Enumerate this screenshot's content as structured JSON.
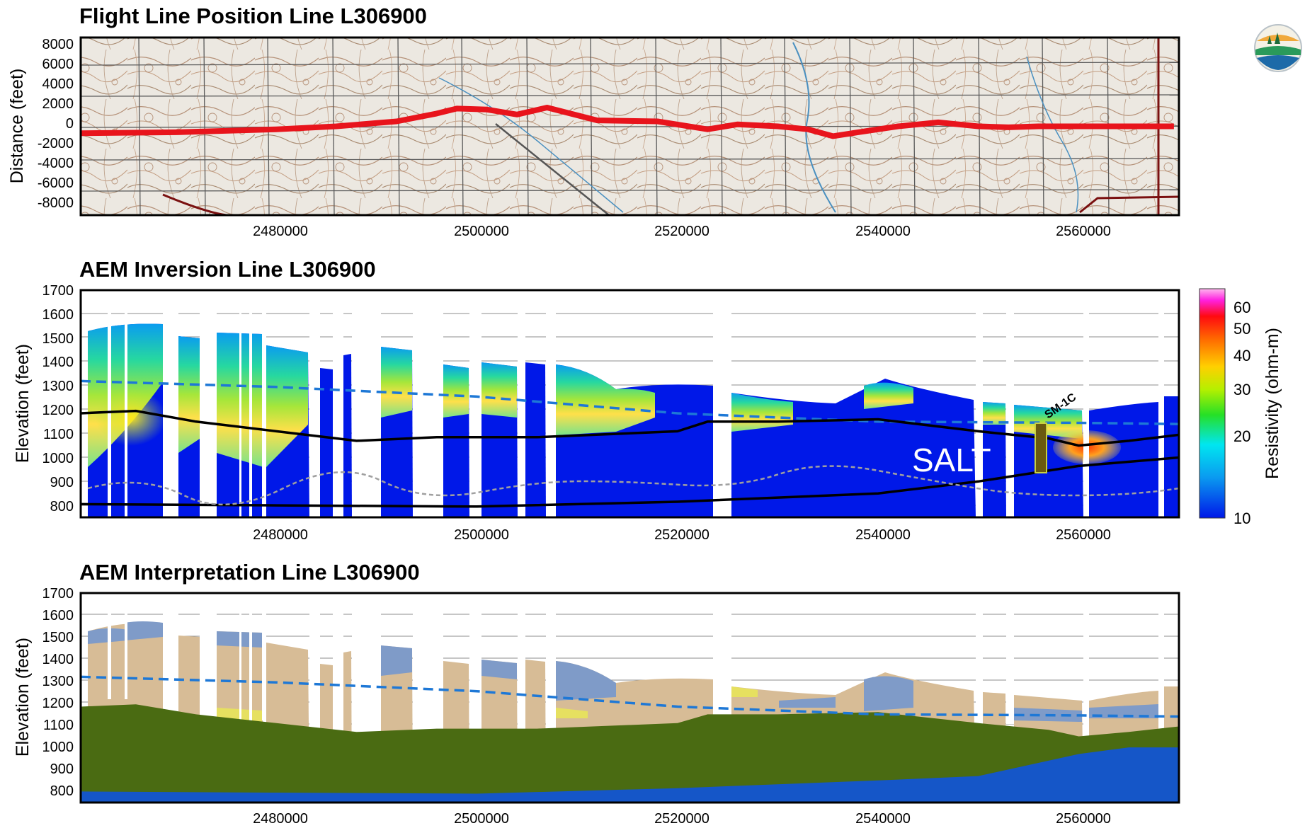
{
  "chart_data": [
    {
      "type": "line",
      "title": "Flight Line Position  Line L306900",
      "ylabel": "Distance (feet)",
      "xlabel": "",
      "xlim": [
        2460500,
        2570000
      ],
      "ylim": [
        -9000,
        9000
      ],
      "x_ticks": [
        "2480000",
        "2500000",
        "2520000",
        "2540000",
        "2560000"
      ],
      "y_ticks": [
        "8000",
        "6000",
        "4000",
        "2000",
        "0",
        "-2000",
        "-4000",
        "-6000",
        "-8000"
      ],
      "background": "topographic map",
      "series": [
        {
          "color": "#e8141c",
          "x": [
            2460500,
            2470000,
            2480000,
            2486000,
            2492000,
            2496000,
            2498000,
            2501000,
            2504000,
            2507000,
            2512000,
            2518000,
            2523000,
            2526000,
            2530000,
            2533000,
            2535500,
            2538000,
            2542000,
            2546000,
            2550000,
            2553000,
            2556000,
            2562000,
            2569500
          ],
          "y": [
            -700,
            -600,
            -300,
            0,
            500,
            1300,
            1800,
            1700,
            1200,
            1900,
            600,
            500,
            -300,
            200,
            0,
            -300,
            -1000,
            -600,
            0,
            400,
            0,
            -100,
            0,
            0,
            0
          ]
        }
      ]
    },
    {
      "type": "heatmap",
      "title": "AEM Inversion   Line L306900",
      "ylabel": "Elevation (feet)",
      "xlabel": "",
      "xlim": [
        2460500,
        2570000
      ],
      "ylim": [
        750,
        1700
      ],
      "x_ticks": [
        "2480000",
        "2500000",
        "2520000",
        "2540000",
        "2560000"
      ],
      "y_ticks": [
        "1700",
        "1600",
        "1500",
        "1400",
        "1300",
        "1200",
        "1100",
        "1000",
        "900",
        "800"
      ],
      "colorbar_label": "Resistivity (ohm-m)",
      "colorbar_ticks": [
        "60",
        "50",
        "40",
        "30",
        "20",
        "10"
      ],
      "annotation": "SALT",
      "well_label": "SM-1C",
      "lines": [
        {
          "style": "dashed",
          "color": "#1e78d6",
          "x": [
            2460500,
            2480000,
            2500000,
            2520000,
            2540000,
            2560000,
            2570000
          ],
          "y": [
            1320,
            1295,
            1255,
            1185,
            1150,
            1145,
            1140
          ]
        },
        {
          "style": "solid",
          "color": "#000000",
          "x": [
            2460500,
            2466000,
            2472000,
            2480000,
            2488000,
            2496000,
            2506000,
            2520000,
            2523000,
            2530000,
            2540000,
            2550000,
            2557000,
            2560000,
            2565000,
            2570000
          ],
          "y": [
            1185,
            1195,
            1150,
            1110,
            1070,
            1085,
            1085,
            1110,
            1150,
            1150,
            1160,
            1110,
            1080,
            1050,
            1070,
            1095
          ]
        },
        {
          "style": "solid",
          "color": "#000000",
          "x": [
            2460500,
            2480000,
            2500000,
            2520000,
            2540000,
            2550000,
            2560000,
            2570000
          ],
          "y": [
            805,
            800,
            795,
            815,
            850,
            900,
            965,
            1000
          ]
        }
      ]
    },
    {
      "type": "area",
      "title": "AEM Interpretation  Line L306900",
      "ylabel": "Elevation (feet)",
      "xlabel": "",
      "xlim": [
        2460500,
        2570000
      ],
      "ylim": [
        750,
        1700
      ],
      "x_ticks": [
        "2480000",
        "2500000",
        "2520000",
        "2540000",
        "2560000"
      ],
      "y_ticks": [
        "1700",
        "1600",
        "1500",
        "1400",
        "1300",
        "1200",
        "1100",
        "1000",
        "900",
        "800"
      ],
      "lines": [
        {
          "style": "dashed",
          "color": "#1e78d6",
          "x": [
            2460500,
            2480000,
            2500000,
            2520000,
            2540000,
            2560000,
            2570000
          ],
          "y": [
            1320,
            1295,
            1255,
            1185,
            1150,
            1145,
            1140
          ]
        }
      ],
      "units": [
        {
          "color": "#4a6b12",
          "top_x": [
            2460500,
            2466000,
            2472000,
            2480000,
            2488000,
            2496000,
            2506000,
            2520000,
            2523000,
            2530000,
            2540000,
            2550000,
            2557000,
            2560000,
            2565000,
            2570000
          ],
          "top_y": [
            1185,
            1195,
            1150,
            1110,
            1070,
            1085,
            1085,
            1110,
            1150,
            1150,
            1160,
            1110,
            1080,
            1050,
            1070,
            1095
          ]
        },
        {
          "color": "#1556c8",
          "top_x": [
            2460500,
            2480000,
            2500000,
            2520000,
            2540000,
            2550000,
            2560000,
            2565000,
            2570000
          ],
          "top_y": [
            800,
            795,
            790,
            815,
            850,
            870,
            970,
            1000,
            1000
          ]
        }
      ]
    }
  ]
}
